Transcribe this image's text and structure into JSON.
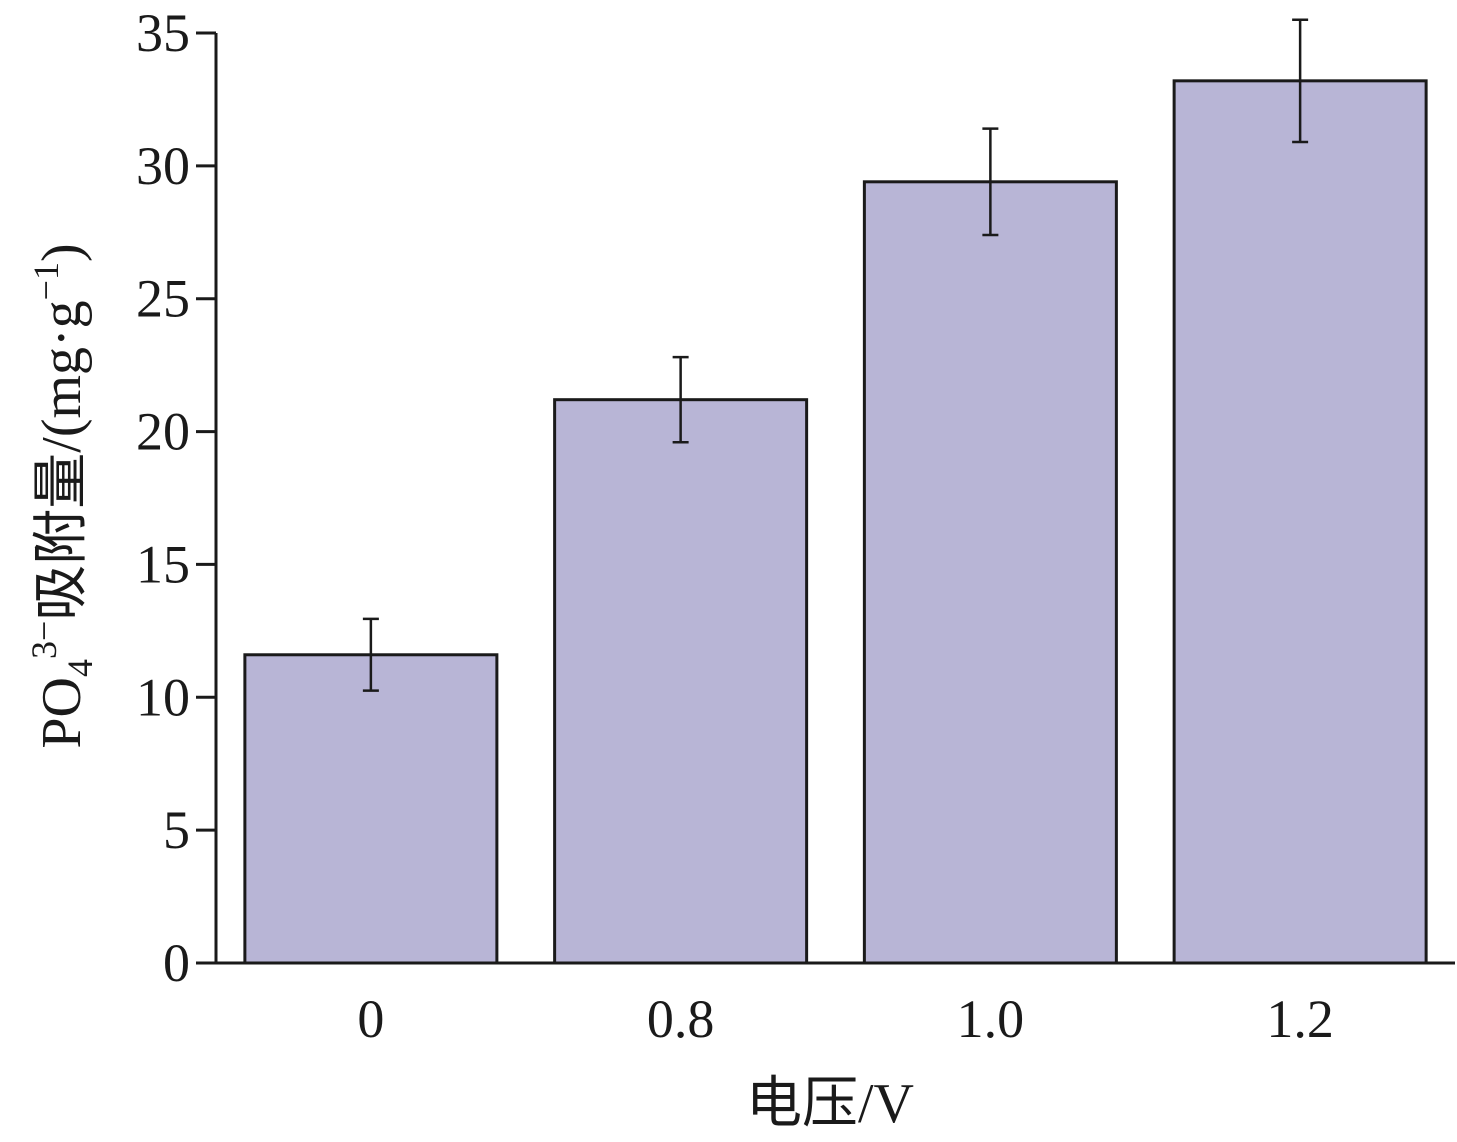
{
  "chart_data": {
    "type": "bar",
    "title": "",
    "xlabel": "电压/V",
    "ylabel": {
      "base": "PO",
      "sub": "4",
      "sup": "3−",
      "rest": "吸附量/(mg·g",
      "unit_sup": "−1",
      "close": ")"
    },
    "categories": [
      "0",
      "0.8",
      "1.0",
      "1.2"
    ],
    "values": [
      11.6,
      21.2,
      29.4,
      33.2
    ],
    "errors": [
      1.35,
      1.6,
      2.0,
      2.3
    ],
    "ylim": [
      0,
      35
    ],
    "yticks": [
      0,
      5,
      10,
      15,
      20,
      25,
      30,
      35
    ],
    "grid": false,
    "legend": "none",
    "colors": {
      "bar_fill": "#b8b5d6",
      "bar_stroke": "#1a1a1a",
      "axis": "#1a1a1a"
    }
  }
}
